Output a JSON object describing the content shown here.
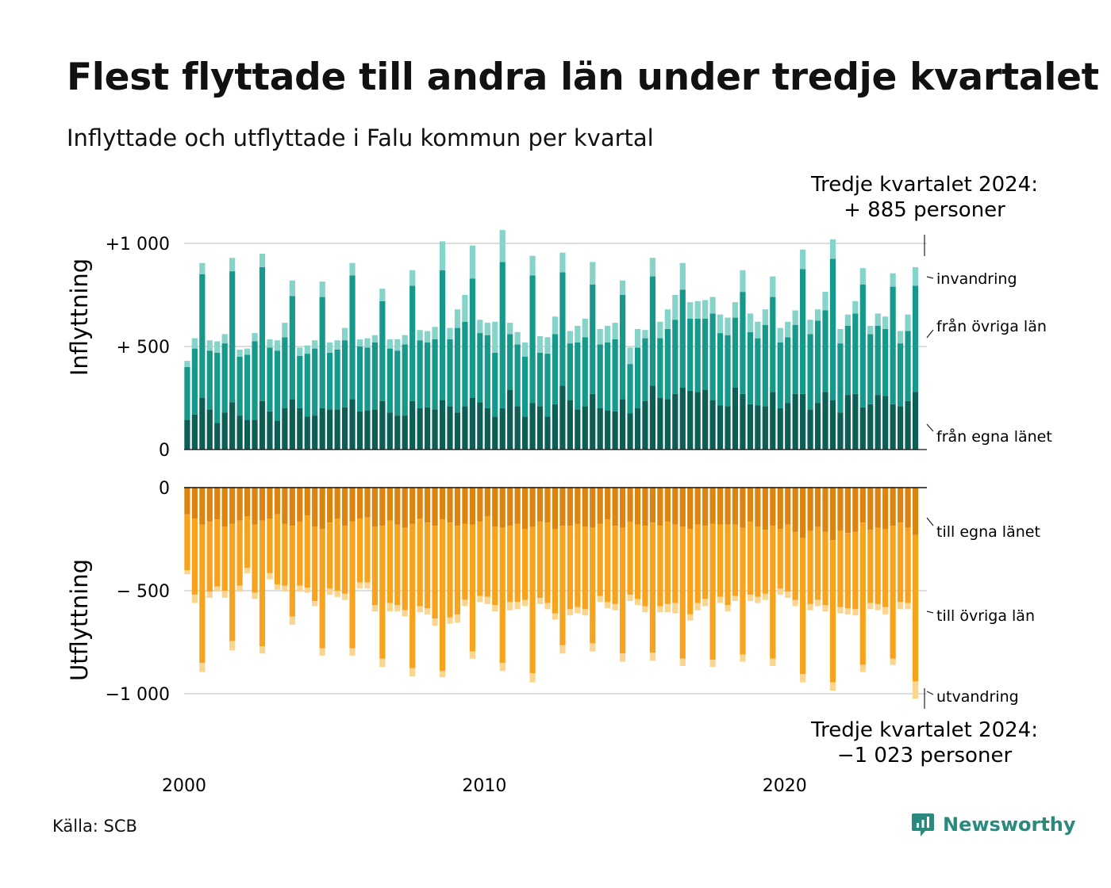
{
  "title": "Flest flyttade till andra län under tredje kvartalet",
  "subtitle": "Inflyttade och utflyttade i Falu kommun per kvartal",
  "source": "Källa: SCB",
  "brand": "Newsworthy",
  "colors": {
    "in_egna": "#0d5f55",
    "in_ovriga": "#16998a",
    "in_invandring": "#86d3c9",
    "ut_egna": "#dc8410",
    "ut_ovriga": "#f8a31e",
    "ut_utvandring": "#f9d58f",
    "brand": "#2a8a7e"
  },
  "annotations": {
    "top": [
      "Tredje kvartalet 2024:",
      "+  885 personer"
    ],
    "bottom": [
      "Tredje kvartalet 2024:",
      "−1 023 personer"
    ]
  },
  "chart_data": {
    "type": "bar",
    "stacked": true,
    "x_start": 2000,
    "x_step": 0.25,
    "x_ticks": [
      2000,
      2010,
      2020
    ],
    "x_tick_labels": [
      "2000",
      "2010",
      "2020"
    ],
    "panels": [
      {
        "name": "inflyttning",
        "ylabel": "Inflyttning",
        "ylim": [
          0,
          1000
        ],
        "y_ticks": [
          0,
          500,
          1000
        ],
        "y_tick_labels": [
          "0",
          "+  500",
          "+1 000"
        ],
        "series": [
          {
            "name": "från egna länet",
            "values": [
              145,
              170,
              250,
              195,
              130,
              180,
              230,
              165,
              145,
              145,
              235,
              185,
              140,
              200,
              245,
              200,
              160,
              165,
              200,
              195,
              195,
              205,
              245,
              185,
              190,
              195,
              235,
              180,
              165,
              165,
              235,
              200,
              205,
              195,
              240,
              210,
              180,
              210,
              250,
              230,
              200,
              160,
              200,
              290,
              210,
              160,
              225,
              210,
              160,
              220,
              310,
              240,
              195,
              210,
              270,
              200,
              190,
              185,
              245,
              175,
              200,
              235,
              310,
              250,
              245,
              270,
              300,
              285,
              280,
              290,
              240,
              215,
              210,
              300,
              270,
              220,
              215,
              210,
              280,
              200,
              225,
              270,
              270,
              195,
              225,
              280,
              240,
              180,
              265,
              270,
              205,
              220,
              265,
              260,
              220,
              210,
              235,
              280
            ]
          },
          {
            "name": "från övriga län",
            "values": [
              255,
              320,
              600,
              285,
              340,
              335,
              635,
              285,
              315,
              380,
              650,
              310,
              340,
              345,
              500,
              255,
              305,
              325,
              540,
              275,
              290,
              325,
              600,
              315,
              305,
              325,
              485,
              310,
              315,
              345,
              560,
              330,
              315,
              340,
              630,
              325,
              410,
              410,
              580,
              335,
              355,
              310,
              710,
              270,
              300,
              290,
              620,
              260,
              305,
              340,
              550,
              275,
              325,
              335,
              530,
              310,
              330,
              350,
              505,
              240,
              295,
              305,
              530,
              290,
              340,
              360,
              475,
              350,
              355,
              345,
              420,
              350,
              345,
              340,
              495,
              350,
              325,
              395,
              460,
              320,
              320,
              335,
              605,
              365,
              400,
              395,
              685,
              335,
              335,
              390,
              595,
              340,
              335,
              325,
              570,
              305,
              340,
              515
            ]
          },
          {
            "name": "invandring",
            "values": [
              30,
              50,
              55,
              50,
              55,
              45,
              65,
              35,
              30,
              40,
              65,
              40,
              50,
              70,
              75,
              40,
              40,
              40,
              75,
              50,
              45,
              60,
              60,
              35,
              45,
              35,
              60,
              45,
              55,
              45,
              75,
              50,
              55,
              60,
              140,
              55,
              90,
              130,
              160,
              65,
              60,
              150,
              155,
              55,
              60,
              70,
              95,
              80,
              80,
              85,
              95,
              60,
              80,
              90,
              110,
              75,
              80,
              80,
              70,
              80,
              90,
              40,
              90,
              80,
              95,
              120,
              130,
              80,
              85,
              90,
              80,
              90,
              85,
              75,
              105,
              90,
              80,
              75,
              100,
              70,
              75,
              70,
              95,
              70,
              55,
              90,
              95,
              70,
              55,
              60,
              80,
              40,
              60,
              60,
              65,
              60,
              80,
              90
            ]
          }
        ]
      },
      {
        "name": "utflyttning",
        "ylabel": "Utflyttning",
        "ylim": [
          -1000,
          0
        ],
        "y_ticks": [
          0,
          -500,
          -1000
        ],
        "y_tick_labels": [
          "0",
          "−  500",
          "−1 000"
        ],
        "series": [
          {
            "name": "till egna länet",
            "values": [
              -130,
              -150,
              -180,
              -165,
              -155,
              -190,
              -175,
              -160,
              -140,
              -180,
              -160,
              -150,
              -130,
              -175,
              -185,
              -165,
              -135,
              -190,
              -200,
              -170,
              -150,
              -185,
              -165,
              -150,
              -145,
              -190,
              -185,
              -160,
              -180,
              -195,
              -175,
              -150,
              -170,
              -185,
              -155,
              -170,
              -185,
              -175,
              -180,
              -165,
              -140,
              -190,
              -195,
              -185,
              -175,
              -200,
              -190,
              -165,
              -170,
              -200,
              -185,
              -185,
              -175,
              -190,
              -195,
              -175,
              -155,
              -185,
              -195,
              -165,
              -180,
              -185,
              -170,
              -185,
              -165,
              -180,
              -190,
              -200,
              -180,
              -185,
              -175,
              -180,
              -180,
              -180,
              -195,
              -165,
              -190,
              -205,
              -185,
              -200,
              -180,
              -215,
              -245,
              -210,
              -190,
              -215,
              -255,
              -210,
              -220,
              -215,
              -170,
              -205,
              -195,
              -200,
              -185,
              -170,
              -195,
              -230
            ]
          },
          {
            "name": "till övriga län",
            "values": [
              -270,
              -370,
              -670,
              -340,
              -325,
              -310,
              -570,
              -315,
              -250,
              -330,
              -610,
              -265,
              -340,
              -300,
              -440,
              -310,
              -350,
              -360,
              -580,
              -320,
              -350,
              -330,
              -615,
              -310,
              -315,
              -380,
              -645,
              -400,
              -390,
              -400,
              -700,
              -425,
              -415,
              -450,
              -735,
              -460,
              -430,
              -370,
              -615,
              -360,
              -390,
              -380,
              -655,
              -370,
              -380,
              -345,
              -710,
              -370,
              -390,
              -410,
              -580,
              -405,
              -405,
              -400,
              -560,
              -350,
              -400,
              -380,
              -610,
              -355,
              -360,
              -390,
              -630,
              -390,
              -400,
              -380,
              -640,
              -415,
              -380,
              -355,
              -660,
              -350,
              -390,
              -345,
              -615,
              -355,
              -340,
              -310,
              -645,
              -290,
              -325,
              -330,
              -660,
              -355,
              -355,
              -355,
              -690,
              -370,
              -365,
              -375,
              -690,
              -355,
              -370,
              -380,
              -645,
              -385,
              -365,
              -710
            ]
          },
          {
            "name": "utvandring",
            "values": [
              -20,
              -40,
              -45,
              -30,
              -25,
              -35,
              -45,
              -30,
              -25,
              -30,
              -35,
              -30,
              -25,
              -30,
              -40,
              -30,
              -25,
              -25,
              -35,
              -30,
              -30,
              -30,
              -35,
              -30,
              -30,
              -30,
              -40,
              -40,
              -30,
              -30,
              -40,
              -30,
              -30,
              -35,
              -30,
              -30,
              -40,
              -30,
              -35,
              -30,
              -35,
              -30,
              -40,
              -40,
              -35,
              -30,
              -45,
              -30,
              -30,
              -30,
              -40,
              -30,
              -30,
              -30,
              -40,
              -30,
              -30,
              -30,
              -40,
              -30,
              -30,
              -30,
              -40,
              -30,
              -40,
              -50,
              -35,
              -30,
              -35,
              -35,
              -35,
              -30,
              -30,
              -25,
              -35,
              -30,
              -30,
              -30,
              -35,
              -30,
              -30,
              -30,
              -40,
              -30,
              -30,
              -30,
              -40,
              -30,
              -30,
              -30,
              -35,
              -30,
              -30,
              -35,
              -30,
              -35,
              -30,
              -83
            ]
          }
        ]
      }
    ],
    "series_labels": [
      "invandring",
      "från övriga län",
      "från egna länet",
      "till egna länet",
      "till övriga län",
      "utvandring"
    ]
  }
}
